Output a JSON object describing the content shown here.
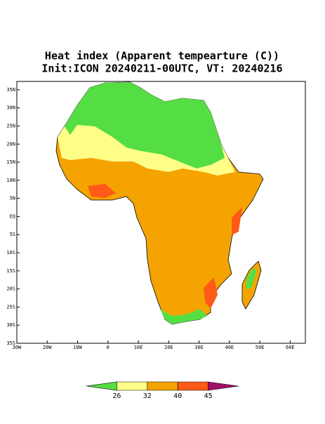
{
  "map": {
    "title": "Heat index (Apparent tempearture (C))",
    "subtitle": "Init:ICON 20240211-00UTC, VT: 20240216",
    "xlim": [
      -30,
      65
    ],
    "ylim": [
      -35,
      37.3
    ],
    "xticks": [
      {
        "value": -30,
        "label": "30W"
      },
      {
        "value": -20,
        "label": "20W"
      },
      {
        "value": -10,
        "label": "10W"
      },
      0,
      {
        "value": 10,
        "label": "10E"
      },
      {
        "value": 20,
        "label": "20E"
      },
      {
        "value": 30,
        "label": "30E"
      },
      {
        "value": 40,
        "label": "40E"
      },
      {
        "value": 50,
        "label": "50E"
      },
      {
        "value": 60,
        "label": "60E"
      }
    ],
    "yticks": [
      {
        "value": -35,
        "label": "35S"
      },
      {
        "value": -30,
        "label": "30S"
      },
      {
        "value": -25,
        "label": "25S"
      },
      {
        "value": -20,
        "label": "20S"
      },
      {
        "value": -15,
        "label": "15S"
      },
      {
        "value": -10,
        "label": "10S"
      },
      {
        "value": -5,
        "label": "5S"
      },
      {
        "value": 0,
        "label": "EQ"
      },
      {
        "value": 5,
        "label": "5N"
      },
      {
        "value": 10,
        "label": "10N"
      },
      {
        "value": 15,
        "label": "15N"
      },
      {
        "value": 20,
        "label": "20N"
      },
      {
        "value": 25,
        "label": "25N"
      },
      {
        "value": 30,
        "label": "30N"
      },
      {
        "value": 35,
        "label": "35N"
      }
    ],
    "colorbar": {
      "levels": [
        26,
        32,
        40,
        45
      ],
      "colors": [
        "#55dd44",
        "#ffff88",
        "#f5a300",
        "#ff5a18",
        "#a0106a"
      ]
    }
  }
}
